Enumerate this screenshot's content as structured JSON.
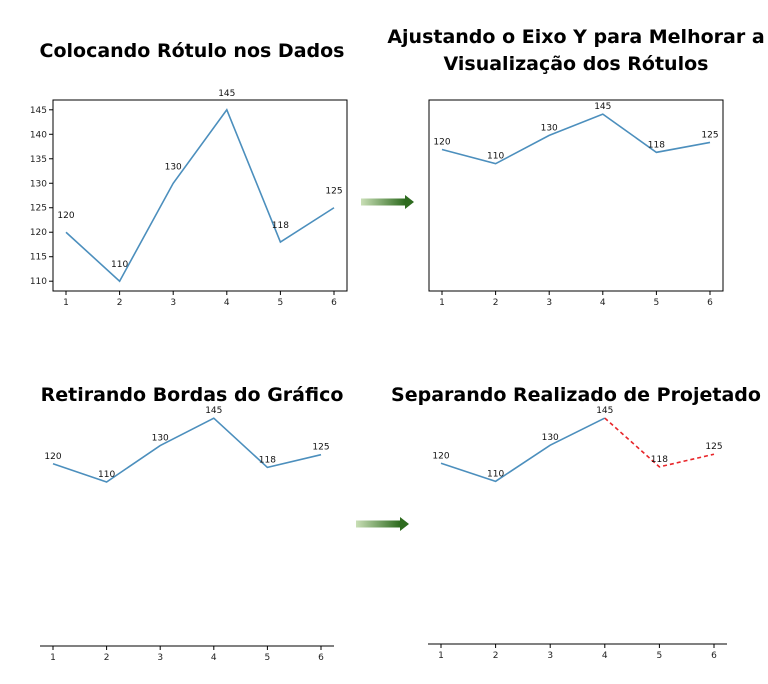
{
  "titles": [
    "Colocando Rótulo nos Dados",
    "Ajustando o Eixo Y para Melhorar a",
    "Visualização dos Rótulos",
    "Retirando Bordas do Gráfico",
    "Separando Realizado de Projetado"
  ],
  "colors": {
    "line": "#4c8fbd",
    "projected": "#e8262a",
    "arrow": "#2e6b1f"
  },
  "chart_data": [
    {
      "type": "line",
      "title": "Colocando Rótulo nos Dados",
      "x": [
        1,
        2,
        3,
        4,
        5,
        6
      ],
      "values": [
        120,
        110,
        130,
        145,
        118,
        125
      ],
      "xlabel": "",
      "ylabel": "",
      "ylim": [
        108,
        147
      ],
      "yticks": [
        110,
        115,
        120,
        125,
        130,
        135,
        140,
        145
      ],
      "data_labels": true,
      "frame": "box",
      "grid": false
    },
    {
      "type": "line",
      "title": "Ajustando o Eixo Y para Melhorar a Visualização dos Rótulos",
      "x": [
        1,
        2,
        3,
        4,
        5,
        6
      ],
      "values": [
        120,
        110,
        130,
        145,
        118,
        125
      ],
      "xlabel": "",
      "ylabel": "",
      "ylim": [
        20,
        155
      ],
      "yticks": [],
      "data_labels": true,
      "frame": "box",
      "grid": false
    },
    {
      "type": "line",
      "title": "Retirando Bordas do Gráfico",
      "x": [
        1,
        2,
        3,
        4,
        5,
        6
      ],
      "values": [
        120,
        110,
        130,
        145,
        118,
        125
      ],
      "xlabel": "",
      "ylabel": "",
      "ylim": [
        20,
        155
      ],
      "yticks": [],
      "data_labels": true,
      "frame": "bottom",
      "grid": false
    },
    {
      "type": "line",
      "title": "Separando Realizado de Projetado",
      "x": [
        1,
        2,
        3,
        4,
        5,
        6
      ],
      "values": [
        120,
        110,
        130,
        145,
        118,
        125
      ],
      "projected_from_x": 4,
      "xlabel": "",
      "ylabel": "",
      "ylim": [
        20,
        155
      ],
      "yticks": [],
      "data_labels": true,
      "frame": "bottom",
      "grid": false
    }
  ]
}
